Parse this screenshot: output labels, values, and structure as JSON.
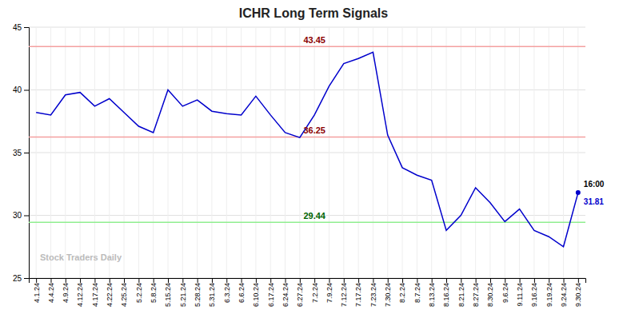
{
  "chart_data": {
    "type": "line",
    "title": "ICHR Long Term Signals",
    "categories": [
      "4.1.24",
      "4.4.24",
      "4.9.24",
      "4.12.24",
      "4.17.24",
      "4.22.24",
      "4.25.24",
      "5.2.24",
      "5.8.24",
      "5.15.24",
      "5.21.24",
      "5.28.24",
      "5.31.24",
      "6.3.24",
      "6.6.24",
      "6.10.24",
      "6.17.24",
      "6.24.24",
      "6.27.24",
      "7.2.24",
      "7.9.24",
      "7.12.24",
      "7.17.24",
      "7.23.24",
      "7.30.24",
      "8.2.24",
      "8.7.24",
      "8.13.24",
      "8.16.24",
      "8.21.24",
      "8.27.24",
      "8.30.24",
      "9.6.24",
      "9.11.24",
      "9.16.24",
      "9.19.24",
      "9.24.24",
      "9.30.24"
    ],
    "values": [
      38.2,
      38.0,
      39.6,
      39.8,
      38.7,
      39.3,
      38.2,
      37.1,
      36.6,
      40.0,
      38.7,
      39.2,
      38.3,
      38.1,
      38.0,
      39.5,
      38.0,
      36.6,
      36.2,
      38.0,
      40.3,
      42.1,
      42.5,
      43.0,
      36.4,
      33.8,
      33.2,
      32.8,
      28.8,
      30.0,
      32.2,
      31.0,
      29.5,
      30.5,
      28.8,
      28.3,
      27.5,
      31.81
    ],
    "color": "#0000cc",
    "ylim": [
      25,
      45
    ],
    "yticks": [
      25,
      30,
      35,
      40,
      45
    ],
    "grid": true,
    "hlines": [
      {
        "value": 43.45,
        "color": "#f4a0a0",
        "label_color": "#8b0000"
      },
      {
        "value": 36.25,
        "color": "#f4a0a0",
        "label_color": "#8b0000"
      },
      {
        "value": 29.44,
        "color": "#90ee90",
        "label_color": "#006400"
      }
    ],
    "annotations": [
      {
        "text": "16:00",
        "color": "#000000"
      },
      {
        "text": "31.81",
        "color": "#0000cc"
      }
    ],
    "watermark": {
      "text": "Stock Traders Daily",
      "color": "#bbbbbb"
    }
  }
}
